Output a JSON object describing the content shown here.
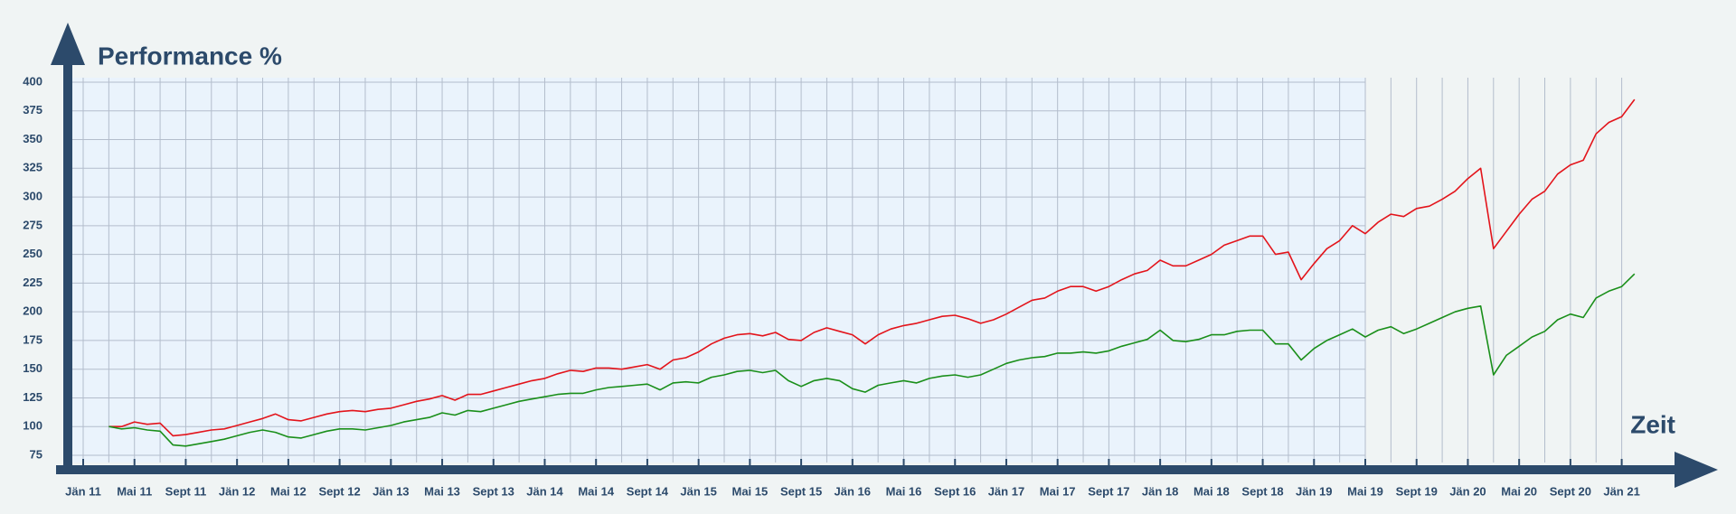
{
  "chart_data": {
    "type": "line",
    "title": "Performance %",
    "x_label": "Zeit",
    "categories": [
      "Jän 11",
      null,
      null,
      null,
      "Mai 11",
      null,
      null,
      null,
      "Sept 11",
      null,
      null,
      null,
      "Jän 12",
      null,
      null,
      null,
      "Mai 12",
      null,
      null,
      null,
      "Sept 12",
      null,
      null,
      null,
      "Jän 13",
      null,
      null,
      null,
      "Mai 13",
      null,
      null,
      null,
      "Sept 13",
      null,
      null,
      null,
      "Jän 14",
      null,
      null,
      null,
      "Mai 14",
      null,
      null,
      null,
      "Sept 14",
      null,
      null,
      null,
      "Jän 15",
      null,
      null,
      null,
      "Mai 15",
      null,
      null,
      null,
      "Sept 15",
      null,
      null,
      null,
      "Jän 16",
      null,
      null,
      null,
      "Mai 16",
      null,
      null,
      null,
      "Sept 16",
      null,
      null,
      null,
      "Jän 17",
      null,
      null,
      null,
      "Mai 17",
      null,
      null,
      null,
      "Sept 17",
      null,
      null,
      null,
      "Jän 18",
      null,
      null,
      null,
      "Mai 18",
      null,
      null,
      null,
      "Sept 18",
      null,
      null,
      null,
      "Jän 19",
      null,
      null,
      null,
      "Mai 19",
      null,
      null,
      null,
      "Sept 19",
      null,
      null,
      null,
      "Jän 20",
      null,
      null,
      null,
      "Mai 20",
      null,
      null,
      null,
      "Sept 20",
      null,
      null,
      null,
      "Jän 21",
      null
    ],
    "series": [
      {
        "color": "#e3141b",
        "values": [
          null,
          null,
          100,
          100,
          104,
          102,
          103,
          92,
          93,
          95,
          97,
          98,
          101,
          104,
          107,
          111,
          106,
          105,
          108,
          111,
          113,
          114,
          113,
          115,
          116,
          119,
          122,
          124,
          127,
          123,
          128,
          128,
          131,
          134,
          137,
          140,
          142,
          146,
          149,
          148,
          151,
          151,
          150,
          152,
          154,
          150,
          158,
          160,
          165,
          172,
          177,
          180,
          181,
          179,
          182,
          176,
          175,
          182,
          186,
          183,
          180,
          172,
          180,
          185,
          188,
          190,
          193,
          196,
          197,
          194,
          190,
          193,
          198,
          204,
          210,
          212,
          218,
          222,
          222,
          218,
          222,
          228,
          233,
          236,
          245,
          240,
          240,
          245,
          250,
          258,
          262,
          266,
          266,
          250,
          252,
          228,
          242,
          255,
          262,
          275,
          268,
          278,
          285,
          283,
          290,
          292,
          298,
          305,
          316,
          325,
          255,
          270,
          285,
          298,
          305,
          320,
          328,
          332,
          355,
          365,
          370,
          385
        ]
      },
      {
        "color": "#1a8f1a",
        "values": [
          null,
          null,
          100,
          98,
          99,
          97,
          96,
          84,
          83,
          85,
          87,
          89,
          92,
          95,
          97,
          95,
          91,
          90,
          93,
          96,
          98,
          98,
          97,
          99,
          101,
          104,
          106,
          108,
          112,
          110,
          114,
          113,
          116,
          119,
          122,
          124,
          126,
          128,
          129,
          129,
          132,
          134,
          135,
          136,
          137,
          132,
          138,
          139,
          138,
          143,
          145,
          148,
          149,
          147,
          149,
          140,
          135,
          140,
          142,
          140,
          133,
          130,
          136,
          138,
          140,
          138,
          142,
          144,
          145,
          143,
          145,
          150,
          155,
          158,
          160,
          161,
          164,
          164,
          165,
          164,
          166,
          170,
          173,
          176,
          184,
          175,
          174,
          176,
          180,
          180,
          183,
          184,
          184,
          172,
          172,
          158,
          168,
          175,
          180,
          185,
          178,
          184,
          187,
          181,
          185,
          190,
          195,
          200,
          203,
          205,
          145,
          162,
          170,
          178,
          183,
          193,
          198,
          195,
          212,
          218,
          222,
          233
        ]
      }
    ],
    "ylim": [
      75,
      400
    ],
    "yticks": [
      75,
      100,
      125,
      150,
      175,
      200,
      225,
      250,
      275,
      300,
      325,
      350,
      375,
      400
    ],
    "grid": true
  }
}
